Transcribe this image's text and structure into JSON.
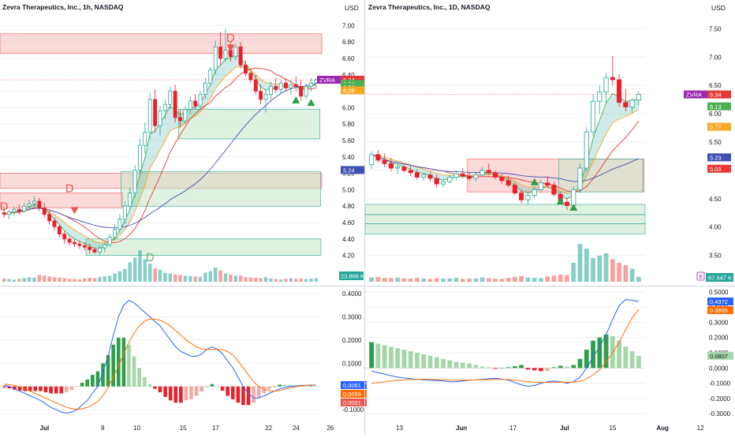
{
  "colors": {
    "up": "#26a69a",
    "down": "#ef5350",
    "down_strong": "#e8202a",
    "macd_line": "#2962ff",
    "signal_line": "#ff6d00",
    "ema_fast": "#4caf50",
    "ema_slow": "#f9a825",
    "ma_red": "#e53935",
    "ma_blue": "#3f51b5",
    "zone_red": "#f8bcbc",
    "zone_green": "#c8e6c9",
    "symbol_badge": "#9c27b0",
    "grid": "#eef0f3",
    "text": "#131722"
  },
  "left_chart": {
    "title": "Zevra Therapeutics, Inc., 1h, NASDAQ",
    "currency": "USD",
    "price_ticks": [
      "7.00",
      "6.80",
      "6.60",
      "6.40",
      "6.20",
      "6.00",
      "5.80",
      "5.60",
      "5.40",
      "5.20",
      "5.00",
      "4.80",
      "4.60",
      "4.40",
      "4.20"
    ],
    "x_ticks": [
      "Jul",
      "8",
      "10",
      "15",
      "17",
      "22",
      "24",
      "26"
    ],
    "price_labels": [
      {
        "text": "6.34",
        "color": "#e53935",
        "price": 6.34
      },
      {
        "text": "6.34",
        "color": "#4caf50",
        "price": 6.29
      },
      {
        "text": "6.29",
        "color": "#4caf50",
        "price": 6.25
      },
      {
        "text": "6.28",
        "color": "#f9a825",
        "price": 6.21
      },
      {
        "text": "5.24",
        "color": "#3f51b5",
        "price": 5.24
      }
    ],
    "symbol_badge": "ZVRA",
    "volume_label": "23.868 K",
    "markers": [
      "D",
      "D",
      "D",
      "D"
    ],
    "macd_ticks": [
      "0.4000",
      "0.3000",
      "0.2000",
      "0.1000",
      "-0.1000"
    ],
    "macd_labels": [
      "0.0061",
      "0.0059",
      "0.0001"
    ]
  },
  "right_chart": {
    "title": "Zevra Therapeutics, Inc., 1D, NASDAQ",
    "currency": "USD",
    "price_ticks": [
      "7.50",
      "7.00",
      "6.50",
      "6.00",
      "5.50",
      "5.00",
      "4.50",
      "4.00",
      "3.50"
    ],
    "x_ticks": [
      "13",
      "Jun",
      "17",
      "Jul",
      "15",
      "Aug",
      "12"
    ],
    "price_labels": [
      {
        "text": "6.34",
        "color": "#e53935",
        "price": 6.34
      },
      {
        "text": "6.13",
        "color": "#4caf50",
        "price": 6.13
      },
      {
        "text": "5.77",
        "color": "#f9a825",
        "price": 5.77
      },
      {
        "text": "5.23",
        "color": "#3f51b5",
        "price": 5.23
      },
      {
        "text": "5.03",
        "color": "#e53935",
        "price": 5.03
      }
    ],
    "symbol_badge": "ZVRA",
    "volume_label": "67.547 K",
    "macd_ticks": [
      "0.5000",
      "0.4000",
      "0.3000",
      "0.2000",
      "0.1000",
      "0.0000",
      "-0.1000",
      "-0.2000",
      "-0.3000"
    ],
    "macd_labels": [
      "0.4372",
      "0.3865",
      "0.0807"
    ]
  },
  "chart_data": [
    {
      "type": "candlestick",
      "title": "Zevra Therapeutics, Inc., 1h, NASDAQ",
      "ylim": [
        4.1,
        7.1
      ],
      "yunit": "USD",
      "ohlc": [
        [
          4.72,
          4.78,
          4.66,
          4.7
        ],
        [
          4.7,
          4.76,
          4.64,
          4.73
        ],
        [
          4.73,
          4.8,
          4.68,
          4.76
        ],
        [
          4.76,
          4.82,
          4.7,
          4.74
        ],
        [
          4.74,
          4.84,
          4.72,
          4.8
        ],
        [
          4.8,
          4.88,
          4.76,
          4.83
        ],
        [
          4.83,
          4.92,
          4.78,
          4.86
        ],
        [
          4.86,
          4.9,
          4.74,
          4.78
        ],
        [
          4.78,
          4.84,
          4.66,
          4.7
        ],
        [
          4.7,
          4.74,
          4.58,
          4.62
        ],
        [
          4.62,
          4.66,
          4.5,
          4.55
        ],
        [
          4.55,
          4.58,
          4.42,
          4.46
        ],
        [
          4.46,
          4.5,
          4.34,
          4.4
        ],
        [
          4.4,
          4.44,
          4.32,
          4.36
        ],
        [
          4.36,
          4.4,
          4.3,
          4.34
        ],
        [
          4.34,
          4.38,
          4.28,
          4.32
        ],
        [
          4.32,
          4.36,
          4.26,
          4.3
        ],
        [
          4.3,
          4.34,
          4.22,
          4.27
        ],
        [
          4.27,
          4.3,
          4.22,
          4.24
        ],
        [
          4.24,
          4.32,
          4.2,
          4.29
        ],
        [
          4.29,
          4.36,
          4.24,
          4.33
        ],
        [
          4.33,
          4.46,
          4.3,
          4.42
        ],
        [
          4.42,
          4.58,
          4.38,
          4.52
        ],
        [
          4.52,
          4.7,
          4.48,
          4.64
        ],
        [
          4.64,
          4.86,
          4.58,
          4.8
        ],
        [
          4.8,
          5.02,
          4.76,
          4.96
        ],
        [
          4.96,
          5.3,
          4.9,
          5.24
        ],
        [
          5.24,
          5.62,
          5.18,
          5.54
        ],
        [
          5.54,
          5.82,
          5.44,
          5.7
        ],
        [
          5.7,
          6.18,
          5.62,
          6.1
        ],
        [
          6.1,
          6.22,
          5.7,
          5.78
        ],
        [
          5.78,
          6.02,
          5.66,
          5.96
        ],
        [
          5.96,
          6.1,
          5.86,
          6.04
        ],
        [
          6.04,
          6.26,
          5.98,
          6.2
        ],
        [
          6.2,
          6.28,
          5.82,
          5.88
        ],
        [
          5.88,
          5.98,
          5.76,
          5.84
        ],
        [
          5.84,
          6.02,
          5.8,
          5.98
        ],
        [
          5.98,
          6.14,
          5.92,
          6.08
        ],
        [
          6.08,
          6.16,
          5.98,
          6.02
        ],
        [
          6.02,
          6.2,
          5.98,
          6.16
        ],
        [
          6.16,
          6.36,
          6.1,
          6.3
        ],
        [
          6.3,
          6.5,
          6.26,
          6.46
        ],
        [
          6.46,
          6.82,
          6.4,
          6.74
        ],
        [
          6.74,
          6.92,
          6.52,
          6.6
        ],
        [
          6.6,
          6.96,
          6.56,
          6.7
        ],
        [
          6.7,
          6.8,
          6.56,
          6.62
        ],
        [
          6.62,
          6.78,
          6.58,
          6.74
        ],
        [
          6.74,
          6.8,
          6.48,
          6.52
        ],
        [
          6.52,
          6.58,
          6.38,
          6.42
        ],
        [
          6.42,
          6.48,
          6.3,
          6.34
        ],
        [
          6.34,
          6.4,
          6.16,
          6.2
        ],
        [
          6.2,
          6.28,
          6.04,
          6.1
        ],
        [
          6.1,
          6.22,
          5.94,
          6.16
        ],
        [
          6.16,
          6.32,
          6.1,
          6.26
        ],
        [
          6.26,
          6.36,
          6.18,
          6.22
        ],
        [
          6.22,
          6.34,
          6.16,
          6.3
        ],
        [
          6.3,
          6.36,
          6.2,
          6.24
        ],
        [
          6.24,
          6.34,
          6.16,
          6.28
        ],
        [
          6.28,
          6.38,
          6.2,
          6.26
        ],
        [
          6.26,
          6.34,
          6.08,
          6.14
        ],
        [
          6.14,
          6.3,
          6.1,
          6.26
        ],
        [
          6.26,
          6.36,
          6.2,
          6.3
        ],
        [
          6.3,
          6.36,
          6.24,
          6.34
        ]
      ],
      "volume": [
        22,
        18,
        14,
        20,
        25,
        30,
        28,
        45,
        40,
        35,
        30,
        28,
        24,
        20,
        18,
        16,
        22,
        26,
        24,
        30,
        35,
        40,
        55,
        70,
        85,
        130,
        160,
        210,
        150,
        120,
        90,
        80,
        60,
        55,
        50,
        45,
        40,
        38,
        35,
        33,
        60,
        70,
        95,
        75,
        55,
        48,
        40,
        42,
        30,
        28,
        26,
        24,
        30,
        22,
        18,
        16,
        20,
        24,
        20,
        22,
        18,
        20,
        24
      ],
      "macd": {
        "ylim": [
          -0.13,
          0.42
        ],
        "macd_line": [
          0.005,
          0.0,
          -0.01,
          -0.02,
          -0.03,
          -0.04,
          -0.05,
          -0.06,
          -0.075,
          -0.09,
          -0.1,
          -0.11,
          -0.115,
          -0.11,
          -0.1,
          -0.08,
          -0.06,
          -0.03,
          0.0,
          0.06,
          0.13,
          0.22,
          0.3,
          0.35,
          0.37,
          0.36,
          0.34,
          0.32,
          0.3,
          0.28,
          0.26,
          0.23,
          0.2,
          0.17,
          0.15,
          0.14,
          0.13,
          0.13,
          0.14,
          0.16,
          0.17,
          0.16,
          0.14,
          0.11,
          0.08,
          0.04,
          0.0,
          -0.03,
          -0.05,
          -0.05,
          -0.04,
          -0.03,
          -0.02,
          -0.01,
          -0.005,
          0.0,
          0.002,
          0.004,
          0.005,
          0.006,
          0.0061
        ],
        "signal_line": [
          0.01,
          0.008,
          0.004,
          -0.002,
          -0.01,
          -0.02,
          -0.03,
          -0.04,
          -0.05,
          -0.06,
          -0.07,
          -0.08,
          -0.09,
          -0.095,
          -0.098,
          -0.096,
          -0.09,
          -0.08,
          -0.065,
          -0.04,
          -0.005,
          0.04,
          0.09,
          0.14,
          0.19,
          0.23,
          0.26,
          0.28,
          0.29,
          0.29,
          0.285,
          0.275,
          0.26,
          0.24,
          0.22,
          0.2,
          0.185,
          0.17,
          0.162,
          0.16,
          0.16,
          0.16,
          0.158,
          0.15,
          0.135,
          0.11,
          0.08,
          0.05,
          0.02,
          0.0,
          -0.012,
          -0.018,
          -0.02,
          -0.018,
          -0.012,
          -0.006,
          -0.002,
          0.002,
          0.004,
          0.005,
          0.0059
        ],
        "histogram": [
          -0.005,
          -0.008,
          -0.014,
          -0.018,
          -0.02,
          -0.02,
          -0.02,
          -0.02,
          -0.025,
          -0.03,
          -0.03,
          -0.03,
          -0.025,
          -0.015,
          -0.002,
          0.016,
          0.03,
          0.05,
          0.065,
          0.1,
          0.135,
          0.18,
          0.21,
          0.21,
          0.18,
          0.13,
          0.08,
          0.04,
          0.01,
          -0.01,
          -0.025,
          -0.045,
          -0.06,
          -0.07,
          -0.07,
          -0.06,
          -0.055,
          -0.04,
          -0.022,
          0.0,
          0.01,
          0.0,
          -0.018,
          -0.04,
          -0.055,
          -0.07,
          -0.08,
          -0.08,
          -0.07,
          -0.05,
          -0.028,
          -0.012,
          0.0,
          0.008,
          0.007,
          0.006,
          0.004,
          0.002,
          0.001,
          0.001,
          0.0001
        ]
      }
    },
    {
      "type": "candlestick",
      "title": "Zevra Therapeutics, Inc., 1D, NASDAQ",
      "ylim": [
        3.3,
        7.7
      ],
      "yunit": "USD",
      "ohlc": [
        [
          5.1,
          5.34,
          5.02,
          5.28
        ],
        [
          5.28,
          5.36,
          5.14,
          5.18
        ],
        [
          5.18,
          5.3,
          5.06,
          5.12
        ],
        [
          5.12,
          5.22,
          4.98,
          5.04
        ],
        [
          5.04,
          5.12,
          4.94,
          5.06
        ],
        [
          5.06,
          5.1,
          4.96,
          5.0
        ],
        [
          5.0,
          5.08,
          4.9,
          4.96
        ],
        [
          4.96,
          5.02,
          4.84,
          4.88
        ],
        [
          4.88,
          4.96,
          4.82,
          4.92
        ],
        [
          4.92,
          4.98,
          4.8,
          4.86
        ],
        [
          4.86,
          4.92,
          4.7,
          4.76
        ],
        [
          4.76,
          4.84,
          4.7,
          4.8
        ],
        [
          4.8,
          4.92,
          4.78,
          4.88
        ],
        [
          4.88,
          5.0,
          4.82,
          4.94
        ],
        [
          4.94,
          5.04,
          4.86,
          4.9
        ],
        [
          4.9,
          4.98,
          4.82,
          4.86
        ],
        [
          4.86,
          4.96,
          4.8,
          4.92
        ],
        [
          4.92,
          5.06,
          4.88,
          5.0
        ],
        [
          5.0,
          5.12,
          4.92,
          4.96
        ],
        [
          4.96,
          5.0,
          4.84,
          4.88
        ],
        [
          4.88,
          4.94,
          4.76,
          4.82
        ],
        [
          4.82,
          4.9,
          4.7,
          4.74
        ],
        [
          4.74,
          4.8,
          4.56,
          4.6
        ],
        [
          4.6,
          4.66,
          4.42,
          4.48
        ],
        [
          4.48,
          4.6,
          4.4,
          4.56
        ],
        [
          4.56,
          4.72,
          4.5,
          4.66
        ],
        [
          4.66,
          4.84,
          4.6,
          4.78
        ],
        [
          4.78,
          4.9,
          4.7,
          4.74
        ],
        [
          4.74,
          4.8,
          4.54,
          4.58
        ],
        [
          4.58,
          4.62,
          4.4,
          4.44
        ],
        [
          4.44,
          4.52,
          4.3,
          4.38
        ],
        [
          4.38,
          4.72,
          4.34,
          4.66
        ],
        [
          4.66,
          5.12,
          4.6,
          5.04
        ],
        [
          5.04,
          5.76,
          4.98,
          5.68
        ],
        [
          5.68,
          6.34,
          5.6,
          6.22
        ],
        [
          6.22,
          6.5,
          6.0,
          6.38
        ],
        [
          6.38,
          6.72,
          6.18,
          6.64
        ],
        [
          6.64,
          7.02,
          6.5,
          6.6
        ],
        [
          6.6,
          6.7,
          6.12,
          6.2
        ],
        [
          6.2,
          6.44,
          6.04,
          6.12
        ],
        [
          6.12,
          6.28,
          6.02,
          6.24
        ],
        [
          6.24,
          6.4,
          6.14,
          6.34
        ]
      ],
      "volume": [
        18,
        20,
        16,
        15,
        17,
        14,
        13,
        16,
        14,
        12,
        15,
        13,
        14,
        16,
        12,
        13,
        14,
        18,
        15,
        13,
        12,
        16,
        20,
        24,
        18,
        16,
        15,
        22,
        26,
        30,
        28,
        80,
        160,
        140,
        100,
        110,
        120,
        95,
        80,
        70,
        55,
        20
      ],
      "macd": {
        "ylim": [
          -0.33,
          0.52
        ],
        "macd_line": [
          -0.02,
          -0.03,
          -0.04,
          -0.05,
          -0.06,
          -0.065,
          -0.07,
          -0.075,
          -0.078,
          -0.08,
          -0.082,
          -0.085,
          -0.09,
          -0.09,
          -0.085,
          -0.08,
          -0.078,
          -0.075,
          -0.07,
          -0.068,
          -0.072,
          -0.08,
          -0.095,
          -0.11,
          -0.12,
          -0.115,
          -0.1,
          -0.09,
          -0.085,
          -0.09,
          -0.1,
          -0.09,
          -0.06,
          0.0,
          0.07,
          0.14,
          0.22,
          0.32,
          0.41,
          0.45,
          0.445,
          0.4372
        ],
        "signal_line": [
          -0.1,
          -0.095,
          -0.09,
          -0.085,
          -0.08,
          -0.078,
          -0.075,
          -0.075,
          -0.074,
          -0.075,
          -0.076,
          -0.077,
          -0.079,
          -0.08,
          -0.08,
          -0.079,
          -0.078,
          -0.077,
          -0.076,
          -0.075,
          -0.075,
          -0.076,
          -0.08,
          -0.085,
          -0.09,
          -0.093,
          -0.094,
          -0.094,
          -0.093,
          -0.093,
          -0.094,
          -0.093,
          -0.088,
          -0.07,
          -0.045,
          -0.01,
          0.04,
          0.1,
          0.17,
          0.25,
          0.33,
          0.3865
        ],
        "histogram": [
          0.17,
          0.16,
          0.15,
          0.14,
          0.13,
          0.12,
          0.11,
          0.1,
          0.09,
          0.08,
          0.07,
          0.06,
          0.05,
          0.04,
          0.035,
          0.03,
          0.02,
          0.01,
          0.005,
          -0.005,
          0.002,
          0.005,
          0.012,
          0.02,
          -0.01,
          -0.015,
          -0.02,
          -0.018,
          0.005,
          0.015,
          0.01,
          0.02,
          0.06,
          0.12,
          0.18,
          0.2,
          0.22,
          0.21,
          0.18,
          0.14,
          0.11,
          0.0807
        ]
      }
    }
  ]
}
